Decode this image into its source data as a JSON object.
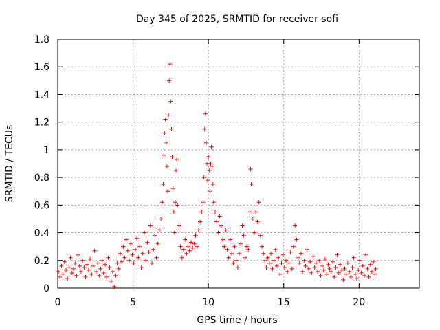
{
  "chart_data": {
    "type": "scatter",
    "title": "Day 345 of 2025, SRMTID for receiver sofi",
    "xlabel": "GPS time / hours",
    "ylabel": "SRMTID / TECUs",
    "xlim": [
      0,
      24
    ],
    "ylim": [
      0,
      1.8
    ],
    "x_ticks": [
      0,
      5,
      10,
      15,
      20
    ],
    "y_ticks": [
      0,
      0.2,
      0.4,
      0.6,
      0.8,
      1,
      1.2,
      1.4,
      1.6,
      1.8
    ],
    "x_tick_labels": [
      "0",
      "5",
      "10",
      "15",
      "20"
    ],
    "y_tick_labels": [
      "0",
      "0.2",
      "0.4",
      "0.6",
      "0.8",
      "1",
      "1.2",
      "1.4",
      "1.6",
      "1.8"
    ],
    "grid": true,
    "marker": "+",
    "marker_color": "#ff0000",
    "series": [
      {
        "name": "SRMTID",
        "points": [
          [
            0.05,
            0.12
          ],
          [
            0.15,
            0.08
          ],
          [
            0.25,
            0.16
          ],
          [
            0.35,
            0.1
          ],
          [
            0.45,
            0.19
          ],
          [
            0.55,
            0.13
          ],
          [
            0.65,
            0.07
          ],
          [
            0.75,
            0.15
          ],
          [
            0.85,
            0.22
          ],
          [
            0.95,
            0.11
          ],
          [
            1.05,
            0.14
          ],
          [
            1.15,
            0.18
          ],
          [
            1.25,
            0.09
          ],
          [
            1.35,
            0.24
          ],
          [
            1.45,
            0.16
          ],
          [
            1.55,
            0.12
          ],
          [
            1.65,
            0.2
          ],
          [
            1.75,
            0.15
          ],
          [
            1.85,
            0.08
          ],
          [
            1.95,
            0.17
          ],
          [
            2.05,
            0.13
          ],
          [
            2.15,
            0.21
          ],
          [
            2.25,
            0.1
          ],
          [
            2.35,
            0.16
          ],
          [
            2.45,
            0.27
          ],
          [
            2.55,
            0.12
          ],
          [
            2.65,
            0.18
          ],
          [
            2.75,
            0.09
          ],
          [
            2.85,
            0.14
          ],
          [
            2.95,
            0.2
          ],
          [
            3.05,
            0.11
          ],
          [
            3.15,
            0.17
          ],
          [
            3.25,
            0.08
          ],
          [
            3.35,
            0.22
          ],
          [
            3.45,
            0.15
          ],
          [
            3.55,
            0.05
          ],
          [
            3.65,
            0.12
          ],
          [
            3.75,
            0.01
          ],
          [
            3.85,
            0.09
          ],
          [
            3.95,
            0.18
          ],
          [
            4.05,
            0.14
          ],
          [
            4.15,
            0.25
          ],
          [
            4.25,
            0.19
          ],
          [
            4.35,
            0.3
          ],
          [
            4.45,
            0.22
          ],
          [
            4.55,
            0.35
          ],
          [
            4.65,
            0.27
          ],
          [
            4.75,
            0.2
          ],
          [
            4.85,
            0.32
          ],
          [
            4.95,
            0.24
          ],
          [
            5.05,
            0.18
          ],
          [
            5.15,
            0.28
          ],
          [
            5.25,
            0.36
          ],
          [
            5.35,
            0.22
          ],
          [
            5.45,
            0.3
          ],
          [
            5.55,
            0.15
          ],
          [
            5.65,
            0.25
          ],
          [
            5.75,
            0.4
          ],
          [
            5.85,
            0.2
          ],
          [
            5.95,
            0.33
          ],
          [
            6.05,
            0.26
          ],
          [
            6.15,
            0.45
          ],
          [
            6.25,
            0.18
          ],
          [
            6.35,
            0.28
          ],
          [
            6.45,
            0.38
          ],
          [
            6.55,
            0.22
          ],
          [
            6.65,
            0.32
          ],
          [
            6.75,
            0.42
          ],
          [
            6.85,
            0.5
          ],
          [
            6.95,
            0.62
          ],
          [
            7.0,
            0.75
          ],
          [
            7.05,
            0.96
          ],
          [
            7.1,
            1.12
          ],
          [
            7.15,
            1.22
          ],
          [
            7.2,
            1.05
          ],
          [
            7.25,
            0.88
          ],
          [
            7.3,
            0.7
          ],
          [
            7.35,
            1.25
          ],
          [
            7.4,
            1.5
          ],
          [
            7.45,
            1.62
          ],
          [
            7.5,
            1.35
          ],
          [
            7.55,
            1.15
          ],
          [
            7.6,
            0.95
          ],
          [
            7.65,
            0.72
          ],
          [
            7.7,
            0.55
          ],
          [
            7.75,
            0.4
          ],
          [
            7.8,
            0.62
          ],
          [
            7.85,
            0.85
          ],
          [
            7.9,
            0.93
          ],
          [
            7.95,
            0.6
          ],
          [
            8.05,
            0.45
          ],
          [
            8.15,
            0.3
          ],
          [
            8.25,
            0.22
          ],
          [
            8.35,
            0.28
          ],
          [
            8.45,
            0.35
          ],
          [
            8.55,
            0.25
          ],
          [
            8.65,
            0.3
          ],
          [
            8.75,
            0.27
          ],
          [
            8.85,
            0.33
          ],
          [
            8.95,
            0.29
          ],
          [
            9.05,
            0.32
          ],
          [
            9.15,
            0.38
          ],
          [
            9.25,
            0.3
          ],
          [
            9.35,
            0.42
          ],
          [
            9.45,
            0.48
          ],
          [
            9.55,
            0.55
          ],
          [
            9.65,
            0.62
          ],
          [
            9.7,
            0.8
          ],
          [
            9.75,
            1.15
          ],
          [
            9.8,
            1.26
          ],
          [
            9.85,
            1.05
          ],
          [
            9.9,
            0.9
          ],
          [
            9.95,
            0.78
          ],
          [
            10.0,
            0.95
          ],
          [
            10.05,
            0.85
          ],
          [
            10.1,
            0.7
          ],
          [
            10.15,
            0.9
          ],
          [
            10.2,
            1.02
          ],
          [
            10.25,
            0.88
          ],
          [
            10.3,
            0.75
          ],
          [
            10.35,
            0.62
          ],
          [
            10.45,
            0.55
          ],
          [
            10.55,
            0.48
          ],
          [
            10.65,
            0.4
          ],
          [
            10.75,
            0.52
          ],
          [
            10.85,
            0.45
          ],
          [
            10.95,
            0.35
          ],
          [
            11.05,
            0.3
          ],
          [
            11.15,
            0.42
          ],
          [
            11.25,
            0.28
          ],
          [
            11.35,
            0.22
          ],
          [
            11.45,
            0.35
          ],
          [
            11.55,
            0.25
          ],
          [
            11.65,
            0.18
          ],
          [
            11.75,
            0.3
          ],
          [
            11.85,
            0.2
          ],
          [
            11.95,
            0.15
          ],
          [
            12.05,
            0.25
          ],
          [
            12.15,
            0.32
          ],
          [
            12.25,
            0.45
          ],
          [
            12.35,
            0.38
          ],
          [
            12.45,
            0.22
          ],
          [
            12.55,
            0.3
          ],
          [
            12.65,
            0.28
          ],
          [
            12.75,
            0.55
          ],
          [
            12.8,
            0.86
          ],
          [
            12.85,
            0.75
          ],
          [
            12.95,
            0.5
          ],
          [
            13.05,
            0.4
          ],
          [
            13.15,
            0.55
          ],
          [
            13.25,
            0.48
          ],
          [
            13.35,
            0.62
          ],
          [
            13.45,
            0.38
          ],
          [
            13.55,
            0.3
          ],
          [
            13.65,
            0.25
          ],
          [
            13.75,
            0.2
          ],
          [
            13.85,
            0.15
          ],
          [
            13.95,
            0.22
          ],
          [
            14.05,
            0.18
          ],
          [
            14.15,
            0.25
          ],
          [
            14.25,
            0.14
          ],
          [
            14.35,
            0.2
          ],
          [
            14.45,
            0.28
          ],
          [
            14.55,
            0.16
          ],
          [
            14.65,
            0.22
          ],
          [
            14.75,
            0.1
          ],
          [
            14.85,
            0.18
          ],
          [
            14.95,
            0.24
          ],
          [
            15.05,
            0.15
          ],
          [
            15.15,
            0.2
          ],
          [
            15.25,
            0.12
          ],
          [
            15.35,
            0.18
          ],
          [
            15.45,
            0.26
          ],
          [
            15.55,
            0.14
          ],
          [
            15.65,
            0.3
          ],
          [
            15.75,
            0.45
          ],
          [
            15.85,
            0.35
          ],
          [
            15.95,
            0.22
          ],
          [
            16.05,
            0.18
          ],
          [
            16.15,
            0.25
          ],
          [
            16.25,
            0.12
          ],
          [
            16.35,
            0.2
          ],
          [
            16.45,
            0.16
          ],
          [
            16.55,
            0.28
          ],
          [
            16.65,
            0.14
          ],
          [
            16.75,
            0.19
          ],
          [
            16.85,
            0.11
          ],
          [
            16.95,
            0.23
          ],
          [
            17.05,
            0.15
          ],
          [
            17.15,
            0.18
          ],
          [
            17.25,
            0.12
          ],
          [
            17.35,
            0.2
          ],
          [
            17.45,
            0.09
          ],
          [
            17.55,
            0.16
          ],
          [
            17.65,
            0.13
          ],
          [
            17.75,
            0.21
          ],
          [
            17.85,
            0.1
          ],
          [
            17.95,
            0.17
          ],
          [
            18.05,
            0.14
          ],
          [
            18.15,
            0.12
          ],
          [
            18.25,
            0.19
          ],
          [
            18.35,
            0.08
          ],
          [
            18.45,
            0.15
          ],
          [
            18.55,
            0.24
          ],
          [
            18.65,
            0.11
          ],
          [
            18.75,
            0.17
          ],
          [
            18.85,
            0.13
          ],
          [
            18.95,
            0.06
          ],
          [
            19.05,
            0.14
          ],
          [
            19.15,
            0.1
          ],
          [
            19.25,
            0.18
          ],
          [
            19.35,
            0.12
          ],
          [
            19.45,
            0.08
          ],
          [
            19.55,
            0.15
          ],
          [
            19.65,
            0.22
          ],
          [
            19.75,
            0.1
          ],
          [
            19.85,
            0.07
          ],
          [
            19.95,
            0.13
          ],
          [
            20.05,
            0.2
          ],
          [
            20.15,
            0.11
          ],
          [
            20.25,
            0.16
          ],
          [
            20.35,
            0.09
          ],
          [
            20.45,
            0.24
          ],
          [
            20.55,
            0.14
          ],
          [
            20.65,
            0.08
          ],
          [
            20.75,
            0.17
          ],
          [
            20.85,
            0.12
          ],
          [
            20.95,
            0.19
          ],
          [
            21.05,
            0.1
          ],
          [
            21.1,
            0.14
          ]
        ]
      }
    ]
  }
}
